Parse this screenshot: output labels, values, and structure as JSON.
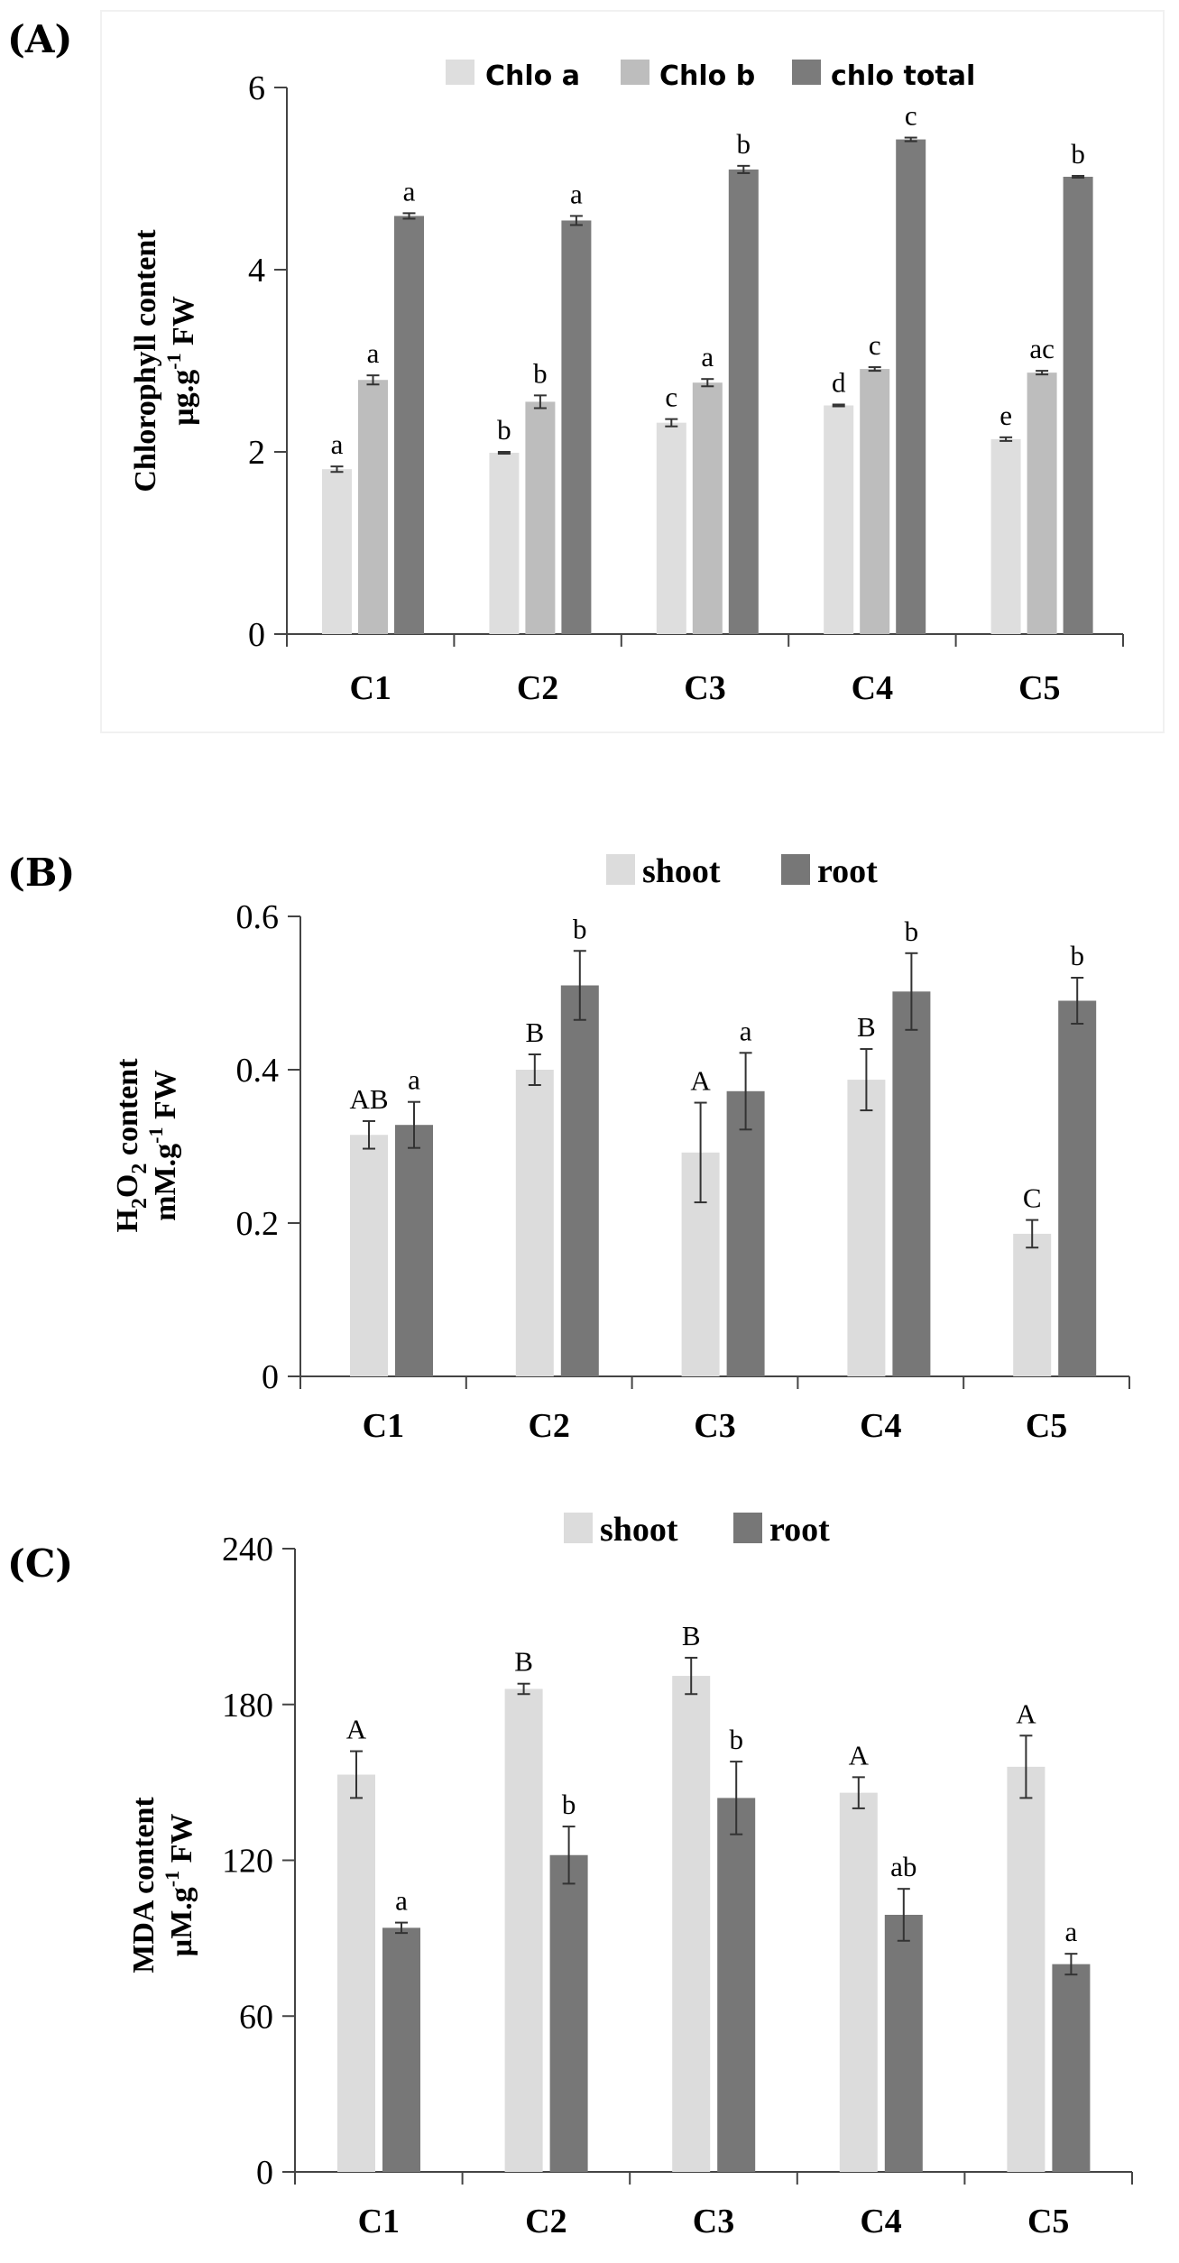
{
  "chart_data": [
    {
      "panel": "(A)",
      "type": "bar",
      "title": "",
      "xlabel": "",
      "ylabel_lines": [
        "Chlorophyll content",
        "µg.g",
        "-1",
        " FW"
      ],
      "ylim": [
        0,
        6
      ],
      "yticks": [
        0,
        2,
        4,
        6
      ],
      "yticklabels": [
        "0",
        "2",
        "4",
        "6"
      ],
      "legend_style": "sans",
      "categories": [
        "C1",
        "C2",
        "C3",
        "C4",
        "C5"
      ],
      "series": [
        {
          "name": "Chlo a",
          "color": "#dedede",
          "values": [
            1.81,
            1.99,
            2.32,
            2.51,
            2.14
          ],
          "errors": [
            0.03,
            0.01,
            0.04,
            0.01,
            0.02
          ],
          "labels": [
            "a",
            "b",
            "c",
            "d",
            "e"
          ]
        },
        {
          "name": "Chlo b",
          "color": "#bdbdbd",
          "values": [
            2.79,
            2.55,
            2.76,
            2.91,
            2.87
          ],
          "errors": [
            0.05,
            0.07,
            0.04,
            0.02,
            0.02
          ],
          "labels": [
            "a",
            "b",
            "a",
            "c",
            "ac"
          ]
        },
        {
          "name": "chlo total",
          "color": "#7b7b7b",
          "values": [
            4.59,
            4.54,
            5.1,
            5.43,
            5.02
          ],
          "errors": [
            0.03,
            0.05,
            0.04,
            0.02,
            0.01
          ],
          "labels": [
            "a",
            "a",
            "b",
            "c",
            "b"
          ]
        }
      ]
    },
    {
      "panel": "(B)",
      "type": "bar",
      "title": "",
      "xlabel": "",
      "ylabel_lines": [
        "H",
        "2",
        "O",
        "2",
        " content",
        "mM.g",
        "-1",
        " FW"
      ],
      "ylim": [
        0,
        0.6
      ],
      "yticks": [
        0,
        0.2,
        0.4,
        0.6
      ],
      "yticklabels": [
        "0",
        "0.2",
        "0.4",
        "0.6"
      ],
      "legend_style": "serif",
      "categories": [
        "C1",
        "C2",
        "C3",
        "C4",
        "C5"
      ],
      "series": [
        {
          "name": "shoot",
          "color": "#dcdcdc",
          "values": [
            0.315,
            0.4,
            0.292,
            0.387,
            0.186
          ],
          "errors": [
            0.018,
            0.02,
            0.065,
            0.04,
            0.018
          ],
          "labels": [
            "AB",
            "B",
            "A",
            "B",
            "C"
          ]
        },
        {
          "name": "root",
          "color": "#777777",
          "values": [
            0.328,
            0.51,
            0.372,
            0.502,
            0.49
          ],
          "errors": [
            0.03,
            0.045,
            0.05,
            0.05,
            0.03
          ],
          "labels": [
            "a",
            "b",
            "a",
            "b",
            "b"
          ]
        }
      ]
    },
    {
      "panel": "(C)",
      "type": "bar",
      "title": "",
      "xlabel": "",
      "ylabel_lines": [
        "MDA content",
        "µM.g",
        "-1",
        " FW"
      ],
      "ylim": [
        0,
        240
      ],
      "yticks": [
        0,
        60,
        120,
        180,
        240
      ],
      "yticklabels": [
        "0",
        "60",
        "120",
        "180",
        "240"
      ],
      "legend_style": "serif",
      "categories": [
        "C1",
        "C2",
        "C3",
        "C4",
        "C5"
      ],
      "series": [
        {
          "name": "shoot",
          "color": "#dcdcdc",
          "values": [
            153,
            186,
            191,
            146,
            156
          ],
          "errors": [
            9,
            2,
            7,
            6,
            12
          ],
          "labels": [
            "A",
            "B",
            "B",
            "A",
            "A"
          ]
        },
        {
          "name": "root",
          "color": "#777777",
          "values": [
            94,
            122,
            144,
            99,
            80
          ],
          "errors": [
            2,
            11,
            14,
            10,
            4
          ],
          "labels": [
            "a",
            "b",
            "b",
            "ab",
            "a"
          ]
        }
      ]
    }
  ]
}
